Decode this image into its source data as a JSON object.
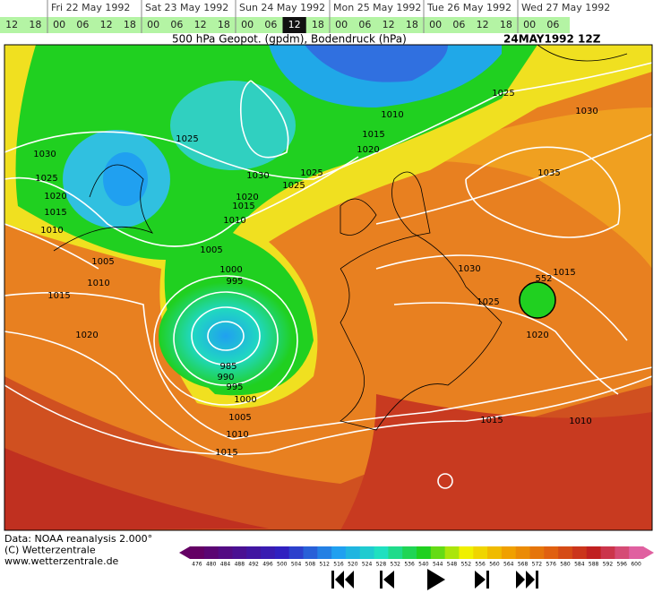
{
  "timeline": {
    "days": [
      "Fri 22 May 1992",
      "Sat 23 May 1992",
      "Sun 24 May 1992",
      "Mon 25 May 1992",
      "Tue 26 May 1992",
      "Wed 27 May 1992"
    ],
    "hour_groups": [
      [
        "12",
        "18"
      ],
      [
        "00",
        "06",
        "12",
        "18"
      ],
      [
        "00",
        "06",
        "12",
        "18"
      ],
      [
        "00",
        "06",
        "12",
        "18"
      ],
      [
        "00",
        "06",
        "12",
        "18"
      ],
      [
        "00",
        "06",
        "12",
        "18"
      ],
      [
        "00",
        "06"
      ]
    ],
    "selected": [
      3,
      2
    ]
  },
  "map": {
    "title": "500 hPa Geopot. (gpdm), Bodendruck (hPa)",
    "date": "24MAY1992 12Z",
    "isobar_labels": [
      "1030",
      "1025",
      "1020",
      "1015",
      "1010",
      "1005",
      "1010",
      "1015",
      "1020",
      "1025",
      "1030",
      "1025",
      "1025",
      "1020",
      "1015",
      "1010",
      "1005",
      "1000",
      "995",
      "985",
      "990",
      "995",
      "1000",
      "1005",
      "1010",
      "1015",
      "1010",
      "1015",
      "1020",
      "1025",
      "1030",
      "1035",
      "1030",
      "1025",
      "1015",
      "552",
      "1020",
      "1015",
      "1010"
    ]
  },
  "footer": {
    "lines": [
      "Data: NOAA reanalysis 2.000°",
      "(C) Wetterzentrale",
      "www.wetterzentrale.de"
    ]
  },
  "scale": {
    "values": [
      476,
      480,
      484,
      488,
      492,
      496,
      500,
      504,
      508,
      512,
      516,
      520,
      524,
      528,
      532,
      536,
      540,
      544,
      548,
      552,
      556,
      560,
      564,
      568,
      572,
      576,
      580,
      584,
      588,
      592,
      596,
      600
    ]
  }
}
